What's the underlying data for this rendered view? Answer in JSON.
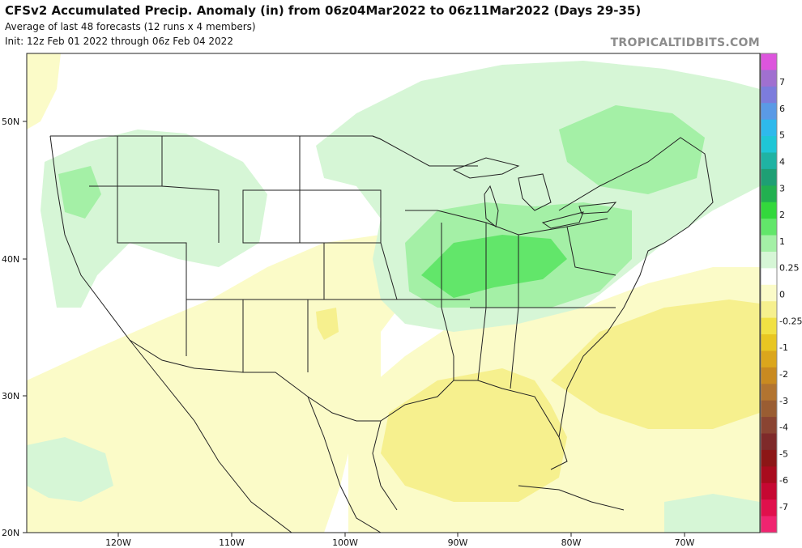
{
  "header": {
    "title": "CFSv2 Accumulated Precip. Anomaly (in) from 06z04Mar2022 to 06z11Mar2022 (Days 29-35)",
    "subtitle": "Average of last 48 forecasts (12 runs x 4 members)",
    "init": "Init: 12z Feb 01 2022 through 06z Feb 04 2022",
    "credit": "TROPICALTIDBITS.COM"
  },
  "axes": {
    "lat_labels": [
      "50N",
      "40N",
      "30N",
      "20N"
    ],
    "lon_labels": [
      "120W",
      "110W",
      "100W",
      "90W",
      "80W",
      "70W"
    ]
  },
  "colorbar": {
    "labels": [
      "7",
      "6",
      "5",
      "4",
      "3",
      "2",
      "1",
      "0.25",
      "0",
      "-0.25",
      "-1",
      "-2",
      "-3",
      "-4",
      "-5",
      "-6",
      "-7"
    ],
    "colors": [
      "#dd55dd",
      "#a070d0",
      "#7c7cdc",
      "#5a9ae6",
      "#2eb9ec",
      "#1fc6d6",
      "#1fb3a3",
      "#1e9f74",
      "#22b050",
      "#33d83c",
      "#62e66a",
      "#a4f0a6",
      "#d6f6d6",
      "#ffffff",
      "#fbfbc8",
      "#f6f08e",
      "#f1e144",
      "#e8c622",
      "#dba61c",
      "#c98a20",
      "#b27430",
      "#9a5d32",
      "#8a4432",
      "#7e2a2a",
      "#8c1616",
      "#a80c1e",
      "#c60832",
      "#e0104c",
      "#f02470"
    ]
  }
}
